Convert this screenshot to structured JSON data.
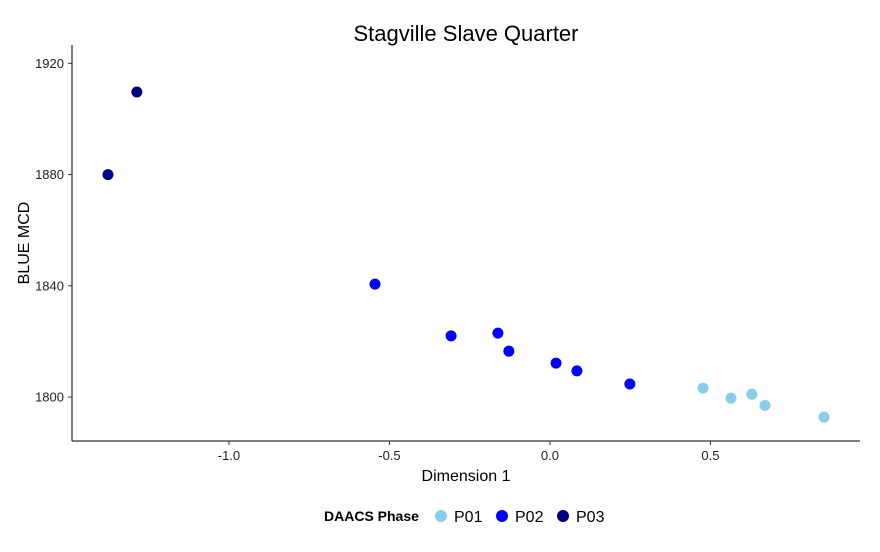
{
  "chart_data": {
    "type": "scatter",
    "title": "Stagville Slave Quarter",
    "xlabel": "Dimension 1",
    "ylabel": "BLUE MCD",
    "xlim": [
      -1.489,
      0.966
    ],
    "ylim": [
      1784.2,
      1926.6
    ],
    "xticks": [
      -1.0,
      -0.5,
      0.0,
      0.5
    ],
    "xtick_labels": [
      "-1.0",
      "-0.5",
      "0.0",
      "0.5"
    ],
    "yticks": [
      1800,
      1840,
      1880,
      1920
    ],
    "ytick_labels": [
      "1800",
      "1840",
      "1880",
      "1920"
    ],
    "grid": false,
    "legend": {
      "title": "DAACS Phase",
      "placement": "bottom"
    },
    "series": [
      {
        "name": "P01",
        "color": "#87CEEB",
        "points": [
          [
            0.477,
            1803.2
          ],
          [
            0.564,
            1799.6
          ],
          [
            0.629,
            1801.0
          ],
          [
            0.67,
            1797.0
          ],
          [
            0.854,
            1792.8
          ]
        ]
      },
      {
        "name": "P02",
        "color": "#0000FF",
        "points": [
          [
            -0.545,
            1840.6
          ],
          [
            -0.308,
            1822.0
          ],
          [
            -0.162,
            1823.0
          ],
          [
            -0.128,
            1816.5
          ],
          [
            0.019,
            1812.2
          ],
          [
            0.084,
            1809.4
          ],
          [
            0.249,
            1804.7
          ]
        ]
      },
      {
        "name": "P03",
        "color": "#000080",
        "points": [
          [
            -1.377,
            1880.0
          ],
          [
            -1.287,
            1909.7
          ]
        ]
      }
    ]
  }
}
